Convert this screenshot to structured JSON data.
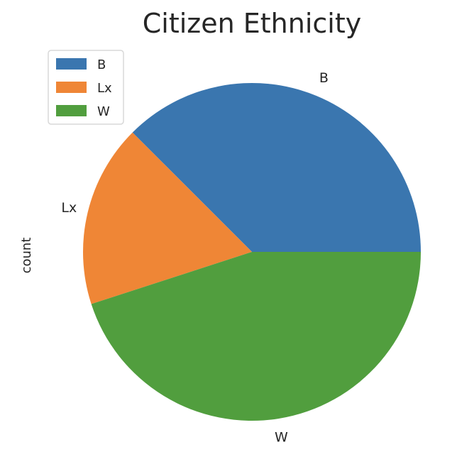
{
  "chart_data": {
    "type": "pie",
    "title": "Citizen Ethnicity",
    "ylabel": "count",
    "legend_position": "top-left",
    "start_angle_deg": 0,
    "direction": "counterclockwise",
    "categories": [
      "B",
      "Lx",
      "W"
    ],
    "values": [
      37.5,
      17.5,
      45.0
    ],
    "colors": [
      "#3a76af",
      "#ef8636",
      "#519e3e"
    ],
    "legend": [
      "B",
      "Lx",
      "W"
    ]
  }
}
